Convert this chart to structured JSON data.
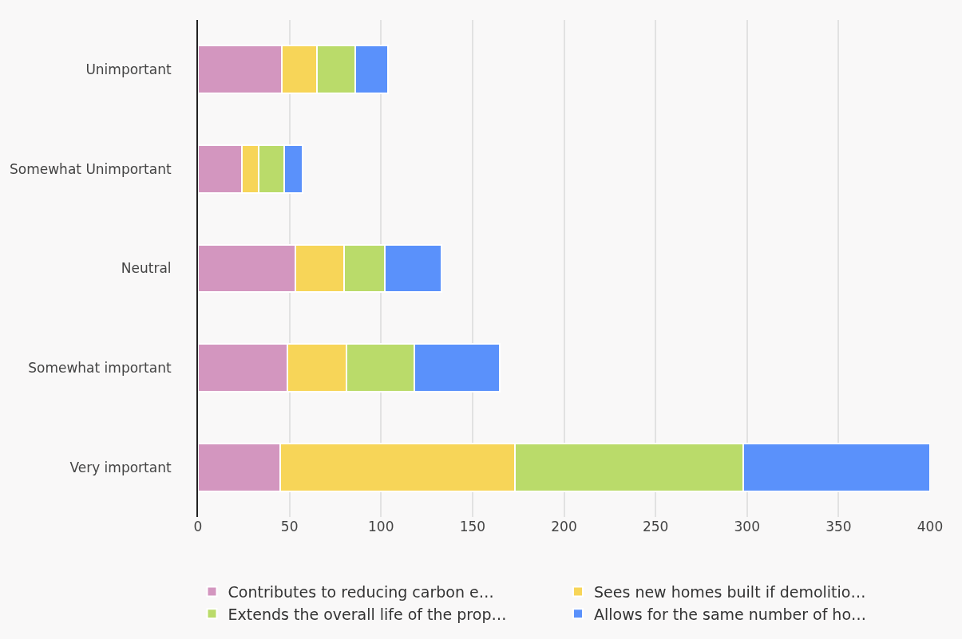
{
  "chart_data": {
    "type": "bar",
    "orientation": "horizontal",
    "stacked": true,
    "categories": [
      "Unimportant",
      "Somewhat Unimportant",
      "Neutral",
      "Somewhat important",
      "Very important"
    ],
    "series": [
      {
        "name": "Contributes to reducing carbon e…",
        "color": "#d396bf",
        "values": [
          46,
          24,
          53,
          49,
          45
        ]
      },
      {
        "name": "Sees new homes built if demolitio…",
        "color": "#f7d558",
        "values": [
          19,
          9,
          27,
          32,
          128
        ]
      },
      {
        "name": "Extends the overall life of the prop…",
        "color": "#badb6a",
        "values": [
          21,
          14,
          22,
          37,
          125
        ]
      },
      {
        "name": "Allows for the same number of ho…",
        "color": "#5a91fb",
        "values": [
          18,
          10,
          31,
          47,
          102
        ]
      }
    ],
    "xlim": [
      0,
      400
    ],
    "xticks": [
      0,
      50,
      100,
      150,
      200,
      250,
      300,
      350,
      400
    ],
    "grid": "x",
    "legend": "bottom"
  }
}
